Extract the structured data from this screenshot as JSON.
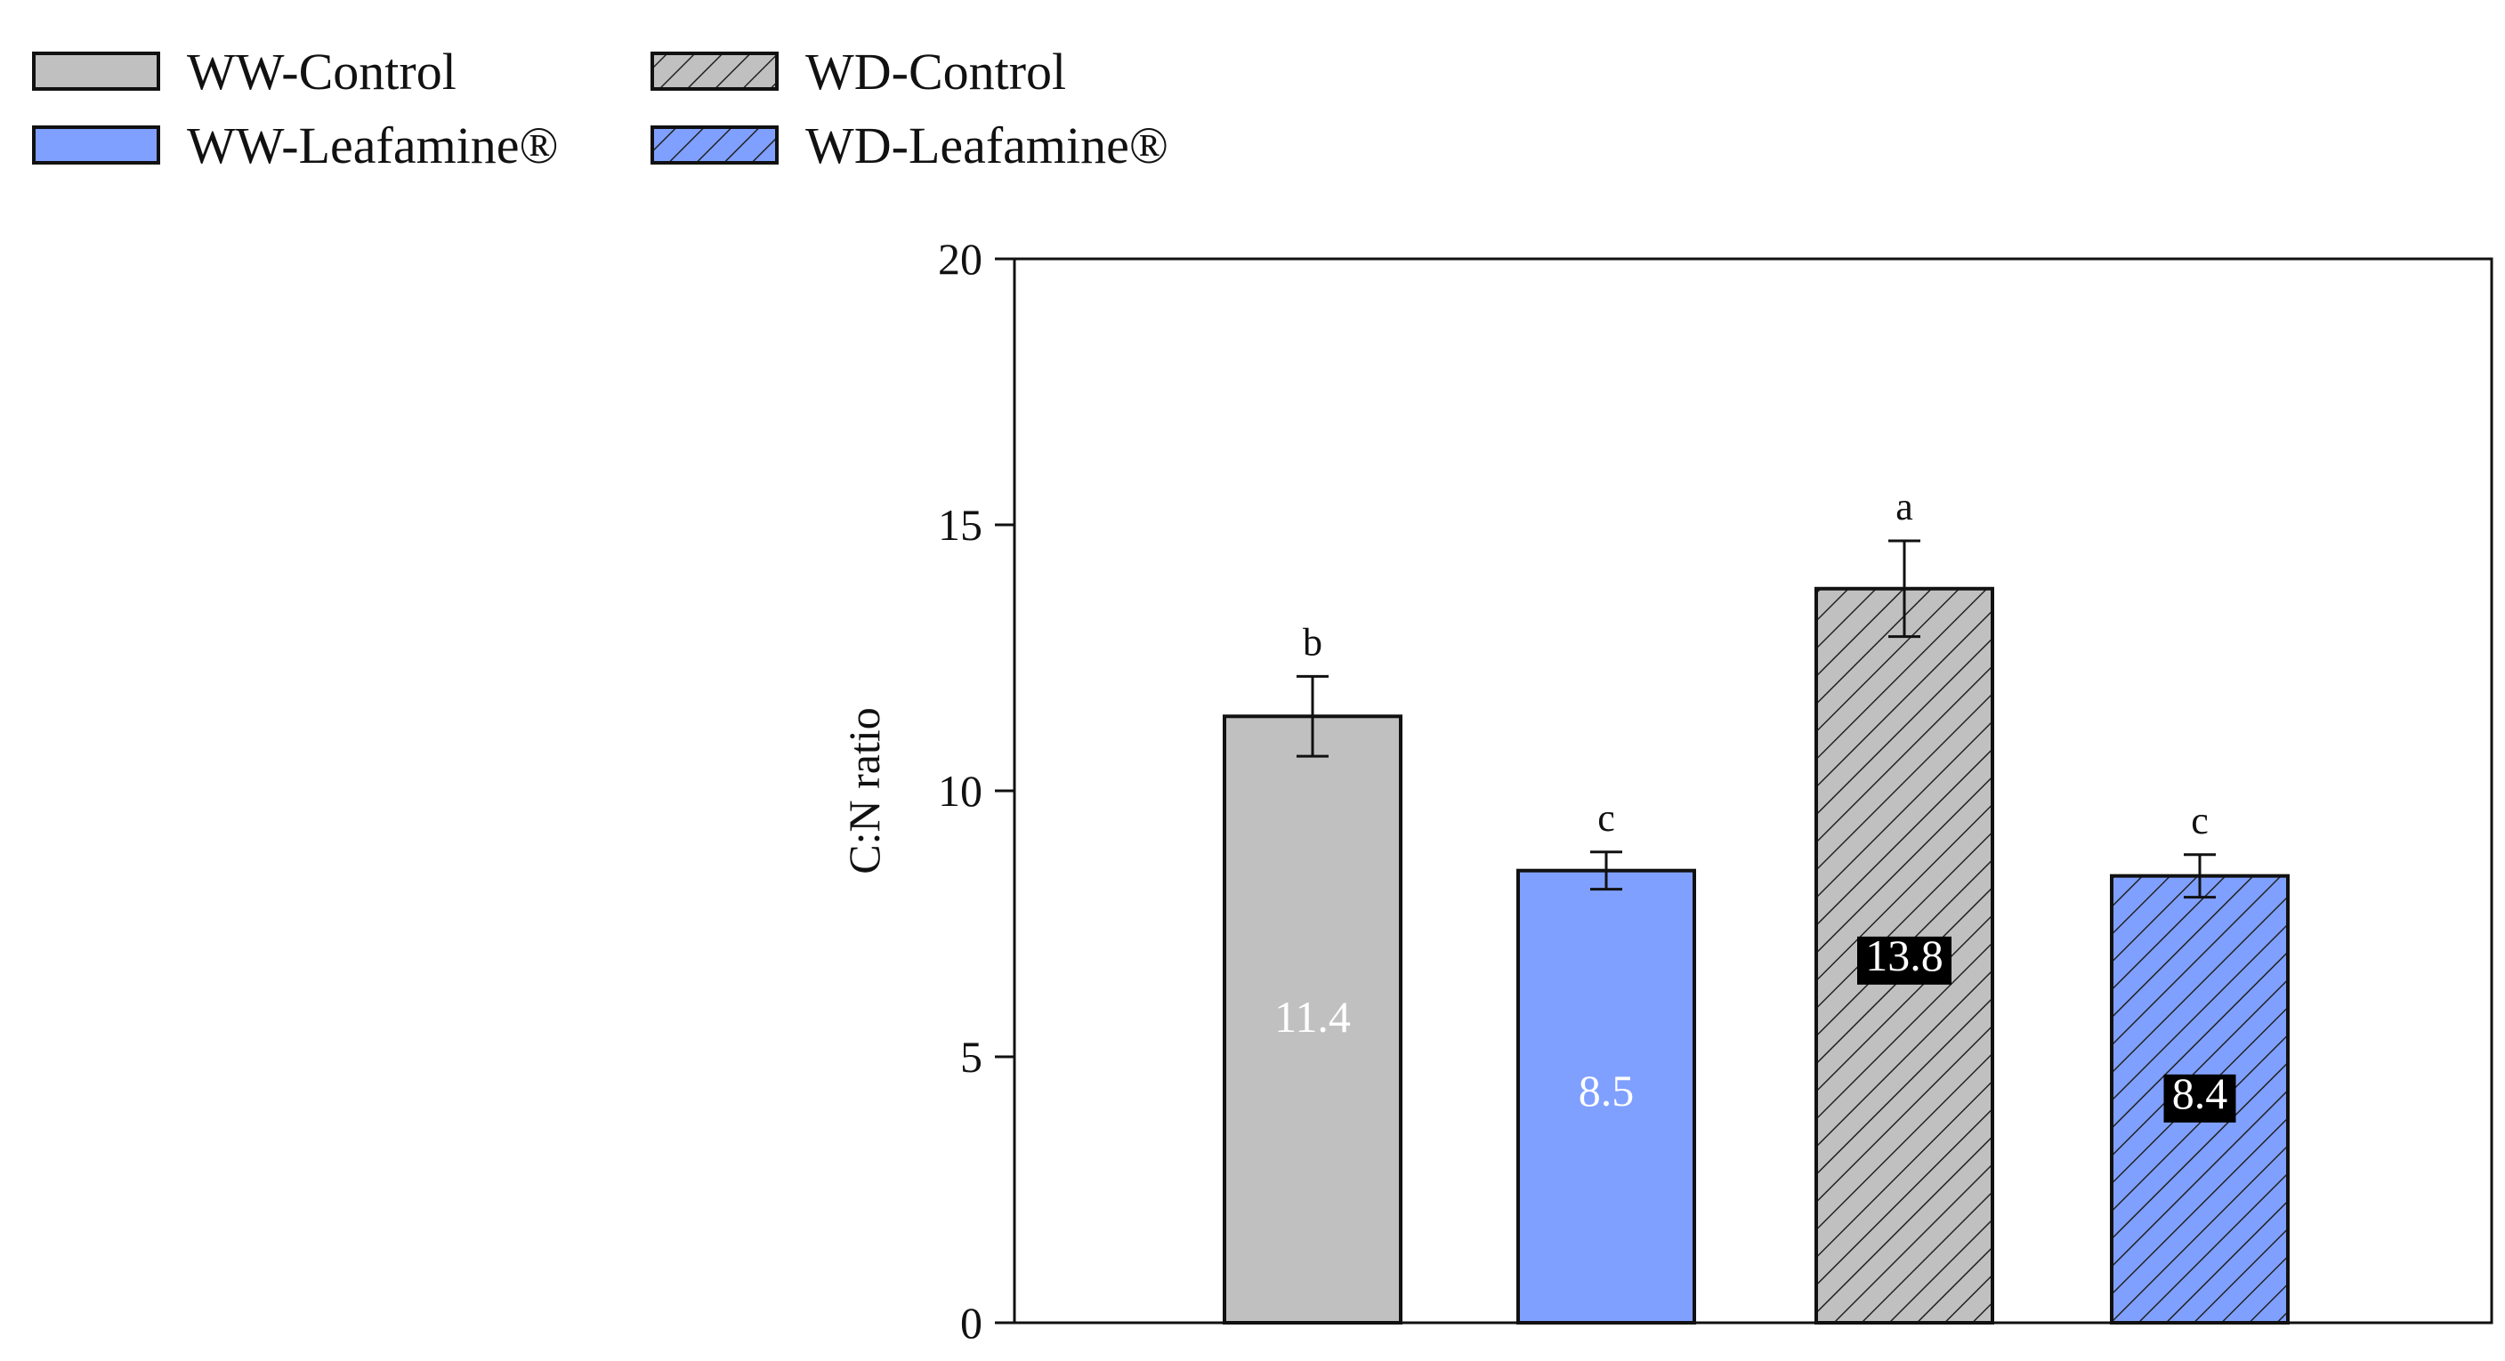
{
  "chart_data": {
    "type": "bar",
    "title": "",
    "xlabel": "",
    "ylabel": "C:N ratio",
    "ylim": [
      0,
      20
    ],
    "yticks": [
      0,
      5,
      10,
      15,
      20
    ],
    "grid": false,
    "legend_position": "top-left",
    "series": [
      {
        "name": "WW-Control",
        "value": 11.4,
        "value_label": "11.4",
        "error": 0.75,
        "significance": "b",
        "fill": "#c0c0c0",
        "hatched": false,
        "label_style": "plain"
      },
      {
        "name": "WW-Leafamine®",
        "value": 8.5,
        "value_label": "8.5",
        "error": 0.35,
        "significance": "c",
        "fill": "#7fa0ff",
        "hatched": false,
        "label_style": "plain"
      },
      {
        "name": "WD-Control",
        "value": 13.8,
        "value_label": "13.8",
        "error": 0.9,
        "significance": "a",
        "fill": "#c0c0c0",
        "hatched": true,
        "label_style": "boxed"
      },
      {
        "name": "WD-Leafamine®",
        "value": 8.4,
        "value_label": "8.4",
        "error": 0.4,
        "significance": "c",
        "fill": "#7fa0ff",
        "hatched": true,
        "label_style": "boxed"
      }
    ]
  }
}
